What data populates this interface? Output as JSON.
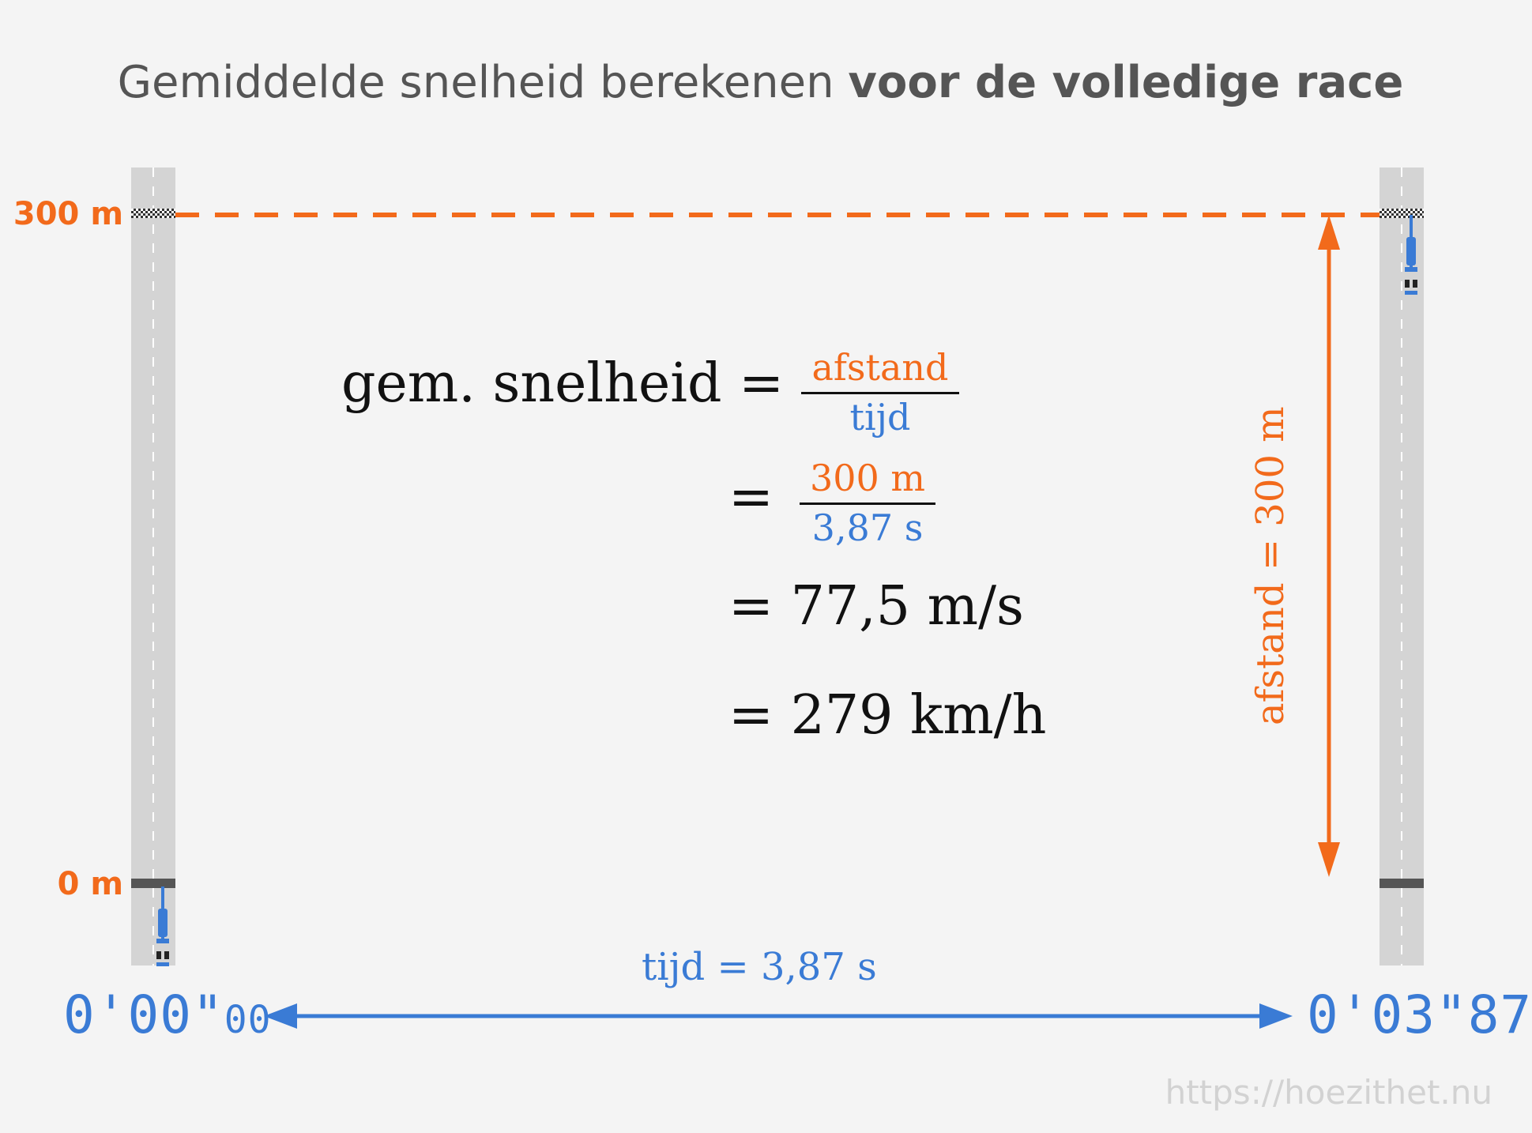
{
  "title": {
    "normal": "Gemiddelde snelheid berekenen ",
    "bold": "voor de volledige race"
  },
  "markers": {
    "top": "300 m",
    "bottom": "0 m"
  },
  "formula": {
    "lhs": "gem.  snelheid =",
    "frac1": {
      "num": "afstand",
      "den": "tijd"
    },
    "eq": "=",
    "frac2": {
      "num": "300  m",
      "den": "3,87  s"
    },
    "line3": "= 77,5 m/s",
    "line4": "= 279 km/h"
  },
  "labels": {
    "distance": "afstand = 300 m",
    "time": "tijd = 3,87 s"
  },
  "clocks": {
    "start_main": "0'00\"",
    "start_small": "00",
    "end_main": "0'03\"",
    "end_small": "87"
  },
  "colors": {
    "orange": "#f26a1b",
    "blue": "#3a7bd5",
    "road": "#d4d4d4"
  },
  "watermark": "https://hoezithet.nu"
}
